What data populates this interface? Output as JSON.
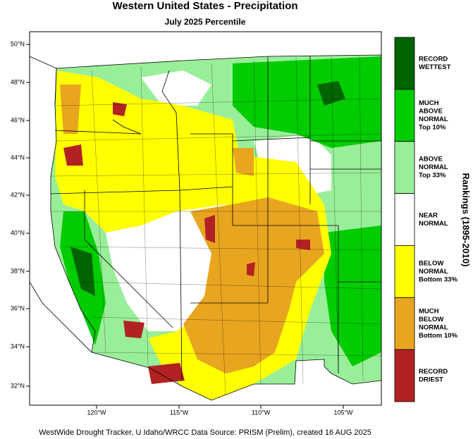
{
  "header": {
    "title": "Western United States - Precipitation",
    "subtitle": "July 2025 Percentile"
  },
  "map": {
    "lat_labels": [
      "50°N",
      "48°N",
      "46°N",
      "44°N",
      "42°N",
      "40°N",
      "38°N",
      "36°N",
      "34°N",
      "32°N"
    ],
    "lon_labels": [
      "120°W",
      "115°W",
      "110°W",
      "105°W"
    ]
  },
  "legend": {
    "title": "Rankings (1895-2010)",
    "items": [
      {
        "lines": [
          "RECORD",
          "WETTEST"
        ],
        "color": "#006400"
      },
      {
        "lines": [
          "MUCH",
          "ABOVE",
          "NORMAL",
          "Top 10%"
        ],
        "color": "#00cc00"
      },
      {
        "lines": [
          "ABOVE",
          "NORMAL",
          "Top 33%"
        ],
        "color": "#99ee99"
      },
      {
        "lines": [
          "NEAR",
          "NORMAL"
        ],
        "color": "#ffffff"
      },
      {
        "lines": [
          "BELOW",
          "NORMAL",
          "Bottom 33%"
        ],
        "color": "#ffff00"
      },
      {
        "lines": [
          "MUCH",
          "BELOW",
          "NORMAL",
          "Bottom 10%"
        ],
        "color": "#e8a520"
      },
      {
        "lines": [
          "RECORD",
          "DRIEST"
        ],
        "color": "#b22222"
      }
    ]
  },
  "footer": "WestWide Drought Tracker, U Idaho/WRCC Data Source: PRISM (Prelim), created 16 AUG 2025"
}
